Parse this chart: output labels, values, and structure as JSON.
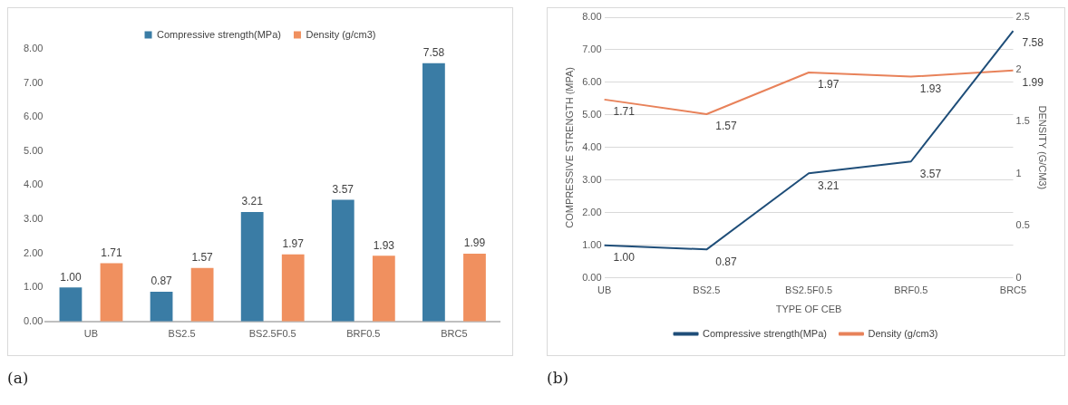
{
  "chart_data": [
    {
      "type": "bar",
      "categories": [
        "UB",
        "BS2.5",
        "BS2.5F0.5",
        "BRF0.5",
        "BRC5"
      ],
      "series": [
        {
          "name": "Compressive strength(MPa)",
          "color": "#3a7ca5",
          "values": [
            1.0,
            0.87,
            3.21,
            3.57,
            7.58
          ],
          "value_labels": [
            "1.00",
            "0.87",
            "3.21",
            "3.57",
            "7.58"
          ]
        },
        {
          "name": "Density (g/cm3)",
          "color": "#f0905f",
          "values": [
            1.71,
            1.57,
            1.97,
            1.93,
            1.99
          ],
          "value_labels": [
            "1.71",
            "1.57",
            "1.97",
            "1.93",
            "1.99"
          ]
        }
      ],
      "ylim": [
        0,
        8
      ],
      "yticks": [
        {
          "value": 0,
          "label": "0.00"
        },
        {
          "value": 1,
          "label": "1.00"
        },
        {
          "value": 2,
          "label": "2.00"
        },
        {
          "value": 3,
          "label": "3.00"
        },
        {
          "value": 4,
          "label": "4.00"
        },
        {
          "value": 5,
          "label": "5.00"
        },
        {
          "value": 6,
          "label": "6.00"
        },
        {
          "value": 7,
          "label": "7.00"
        },
        {
          "value": 8,
          "label": "8.00"
        }
      ],
      "grid": false,
      "legend": "top",
      "annotations": [
        "(a)"
      ]
    },
    {
      "type": "line",
      "categories": [
        "UB",
        "BS2.5",
        "BS2.5F0.5",
        "BRF0.5",
        "BRC5"
      ],
      "series": [
        {
          "name": "Compressive strength(MPa)",
          "color": "#1f4e79",
          "values": [
            1.0,
            0.87,
            3.21,
            3.57,
            7.58
          ],
          "value_labels": [
            "1.00",
            "0.87",
            "3.21",
            "3.57",
            "7.58"
          ]
        },
        {
          "name": "Density (g/cm3)",
          "color": "#e8825a",
          "axis": "y2",
          "values": [
            1.71,
            1.57,
            1.97,
            1.93,
            1.99
          ],
          "value_labels": [
            "1.71",
            "1.57",
            "1.97",
            "1.93",
            "1.99"
          ]
        }
      ],
      "xlabel": "TYPE OF CEB",
      "ylabel": "COMPRESSIVE STRENGTH (MPA)",
      "y2label": "DENSITY (G/CM3)",
      "ylim": [
        0,
        8
      ],
      "yticks": [
        {
          "value": 0,
          "label": "0.00"
        },
        {
          "value": 1,
          "label": "1.00"
        },
        {
          "value": 2,
          "label": "2.00"
        },
        {
          "value": 3,
          "label": "3.00"
        },
        {
          "value": 4,
          "label": "4.00"
        },
        {
          "value": 5,
          "label": "5.00"
        },
        {
          "value": 6,
          "label": "6.00"
        },
        {
          "value": 7,
          "label": "7.00"
        },
        {
          "value": 8,
          "label": "8.00"
        }
      ],
      "y2lim": [
        0,
        2.5
      ],
      "y2ticks": [
        0,
        0.5,
        1,
        1.5,
        2,
        2.5
      ],
      "grid": "y",
      "legend": "bottom",
      "marker": "none",
      "annotations": [
        "(b)"
      ]
    }
  ]
}
